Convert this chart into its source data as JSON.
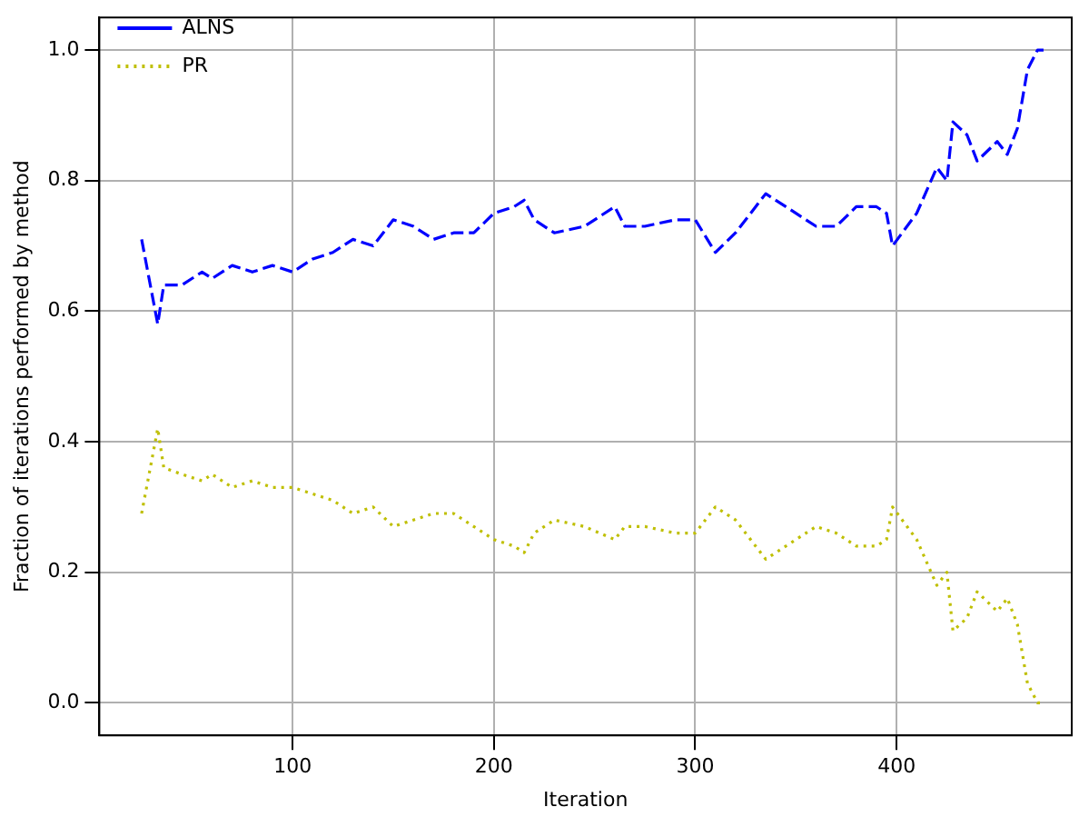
{
  "chart_data": {
    "type": "line",
    "xlabel": "Iteration",
    "ylabel": "Fraction of iterations performed by method",
    "x": [
      25,
      33,
      36,
      45,
      55,
      60,
      70,
      80,
      90,
      100,
      110,
      120,
      130,
      140,
      150,
      160,
      170,
      180,
      190,
      200,
      210,
      215,
      220,
      230,
      245,
      260,
      265,
      275,
      290,
      300,
      310,
      320,
      330,
      335,
      350,
      360,
      370,
      380,
      390,
      395,
      398,
      410,
      420,
      425,
      428,
      435,
      440,
      450,
      455,
      460,
      465,
      470,
      473
    ],
    "series": [
      {
        "name": "ALNS",
        "color": "#0000ff",
        "line_style": "dashed",
        "values": [
          0.71,
          0.58,
          0.64,
          0.64,
          0.66,
          0.65,
          0.67,
          0.66,
          0.67,
          0.66,
          0.68,
          0.69,
          0.71,
          0.7,
          0.74,
          0.73,
          0.71,
          0.72,
          0.72,
          0.75,
          0.76,
          0.77,
          0.74,
          0.72,
          0.73,
          0.76,
          0.73,
          0.73,
          0.74,
          0.74,
          0.69,
          0.72,
          0.76,
          0.78,
          0.75,
          0.73,
          0.73,
          0.76,
          0.76,
          0.75,
          0.7,
          0.75,
          0.82,
          0.8,
          0.89,
          0.87,
          0.83,
          0.86,
          0.84,
          0.88,
          0.97,
          1.0,
          1.0
        ]
      },
      {
        "name": "PR",
        "color": "#bfbf00",
        "line_style": "dotted",
        "values": [
          0.29,
          0.42,
          0.36,
          0.35,
          0.34,
          0.35,
          0.33,
          0.34,
          0.33,
          0.33,
          0.32,
          0.31,
          0.29,
          0.3,
          0.27,
          0.28,
          0.29,
          0.29,
          0.27,
          0.25,
          0.24,
          0.23,
          0.26,
          0.28,
          0.27,
          0.25,
          0.27,
          0.27,
          0.26,
          0.26,
          0.3,
          0.28,
          0.24,
          0.22,
          0.25,
          0.27,
          0.26,
          0.24,
          0.24,
          0.25,
          0.3,
          0.25,
          0.18,
          0.2,
          0.11,
          0.13,
          0.17,
          0.14,
          0.16,
          0.12,
          0.03,
          0.0,
          0.0
        ]
      }
    ],
    "xlim": [
      4,
      487
    ],
    "xticks": [
      100,
      200,
      300,
      400
    ],
    "ylim": [
      -0.05,
      1.05
    ],
    "yticks": [
      {
        "value": 0,
        "label": "0.0"
      },
      {
        "value": 0.2,
        "label": "0.2"
      },
      {
        "value": 0.4,
        "label": "0.4"
      },
      {
        "value": 0.6,
        "label": "0.6"
      },
      {
        "value": 0.8,
        "label": "0.8"
      },
      {
        "value": 1,
        "label": "1.0"
      }
    ],
    "grid": true,
    "legend": "top left",
    "marker": "none"
  }
}
